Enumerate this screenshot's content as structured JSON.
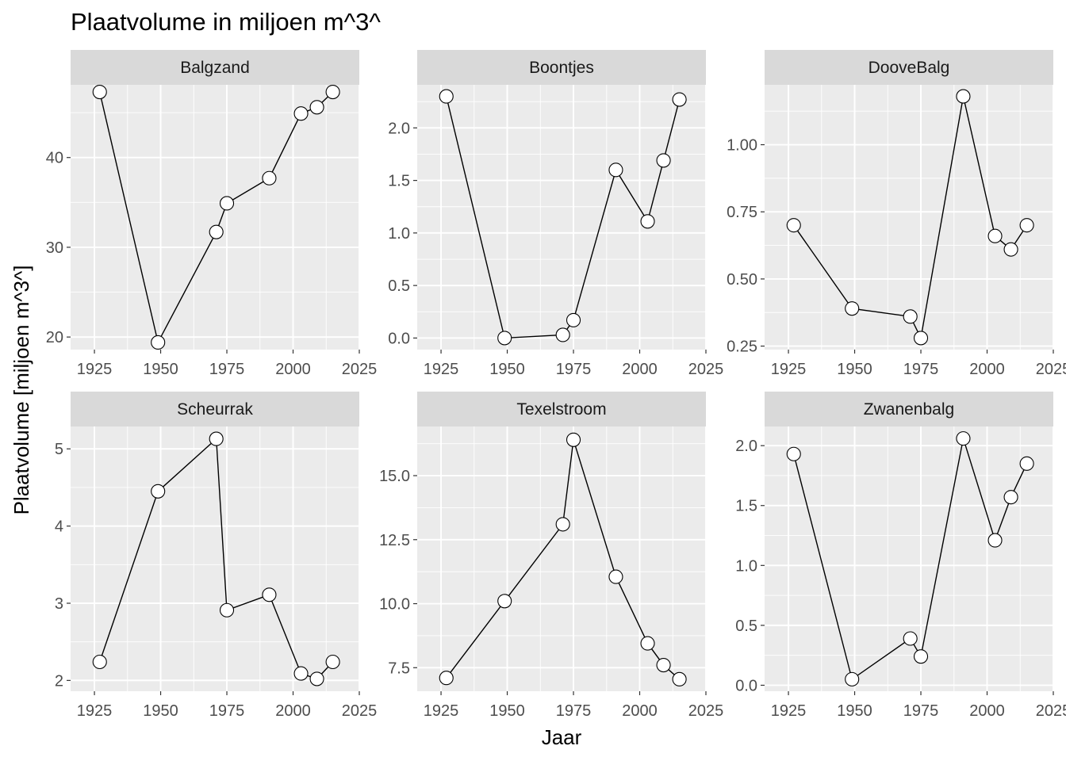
{
  "title": "Plaatvolume in miljoen m^3^",
  "chart_data": {
    "type": "line",
    "title": "Plaatvolume in miljoen m^3^",
    "xlabel": "Jaar",
    "ylabel": "Plaatvolume [miljoen m^3^]",
    "facet_rows": 2,
    "facet_cols": 3,
    "x_ticks": [
      1925,
      1950,
      1975,
      2000,
      2025
    ],
    "xlim": [
      1916,
      2025
    ],
    "grid": true,
    "marker": "circle-open",
    "line_color": "#000000",
    "panel_background": "#EBEBEB",
    "strip_background": "#D9D9D9",
    "panels": [
      {
        "name": "Balgzand",
        "x": [
          1927,
          1949,
          1971,
          1975,
          1991,
          2003,
          2009,
          2015
        ],
        "y": [
          47.3,
          19.4,
          31.7,
          34.9,
          37.7,
          44.9,
          45.6,
          47.3
        ],
        "ylim": [
          18.6,
          48.1
        ],
        "y_ticks": [
          20,
          30,
          40
        ],
        "y_tick_labels": [
          "20",
          "30",
          "40"
        ]
      },
      {
        "name": "Boontjes",
        "x": [
          1927,
          1949,
          1971,
          1975,
          1991,
          2003,
          2009,
          2015
        ],
        "y": [
          2.3,
          0.0,
          0.03,
          0.17,
          1.6,
          1.11,
          1.69,
          2.27
        ],
        "ylim": [
          -0.11,
          2.41
        ],
        "y_ticks": [
          0.0,
          0.5,
          1.0,
          1.5,
          2.0
        ],
        "y_tick_labels": [
          "0.0",
          "0.5",
          "1.0",
          "1.5",
          "2.0"
        ]
      },
      {
        "name": "DooveBalg",
        "x": [
          1927,
          1949,
          1971,
          1975,
          1991,
          2003,
          2009,
          2015
        ],
        "y": [
          0.7,
          0.39,
          0.36,
          0.28,
          1.18,
          0.66,
          0.61,
          0.7
        ],
        "ylim": [
          0.237,
          1.223
        ],
        "y_ticks": [
          0.25,
          0.5,
          0.75,
          1.0
        ],
        "y_tick_labels": [
          "0.25",
          "0.50",
          "0.75",
          "1.00"
        ]
      },
      {
        "name": "Scheurrak",
        "x": [
          1927,
          1949,
          1971,
          1975,
          1991,
          2003,
          2009,
          2015
        ],
        "y": [
          2.24,
          4.45,
          5.13,
          2.91,
          3.11,
          2.09,
          2.02,
          2.24
        ],
        "ylim": [
          1.86,
          5.29
        ],
        "y_ticks": [
          2,
          3,
          4,
          5
        ],
        "y_tick_labels": [
          "2",
          "3",
          "4",
          "5"
        ]
      },
      {
        "name": "Texelstroom",
        "x": [
          1927,
          1949,
          1971,
          1975,
          1991,
          2003,
          2009,
          2015
        ],
        "y": [
          7.1,
          10.1,
          13.1,
          16.4,
          11.05,
          8.45,
          7.6,
          7.05
        ],
        "ylim": [
          6.58,
          16.92
        ],
        "y_ticks": [
          7.5,
          10.0,
          12.5,
          15.0
        ],
        "y_tick_labels": [
          "7.5",
          "10.0",
          "12.5",
          "15.0"
        ]
      },
      {
        "name": "Zwanenbalg",
        "x": [
          1927,
          1949,
          1971,
          1975,
          1991,
          2003,
          2009,
          2015
        ],
        "y": [
          1.93,
          0.05,
          0.39,
          0.24,
          2.06,
          1.21,
          1.57,
          1.85
        ],
        "ylim": [
          -0.05,
          2.16
        ],
        "y_ticks": [
          0.0,
          0.5,
          1.0,
          1.5,
          2.0
        ],
        "y_tick_labels": [
          "0.0",
          "0.5",
          "1.0",
          "1.5",
          "2.0"
        ]
      }
    ]
  }
}
